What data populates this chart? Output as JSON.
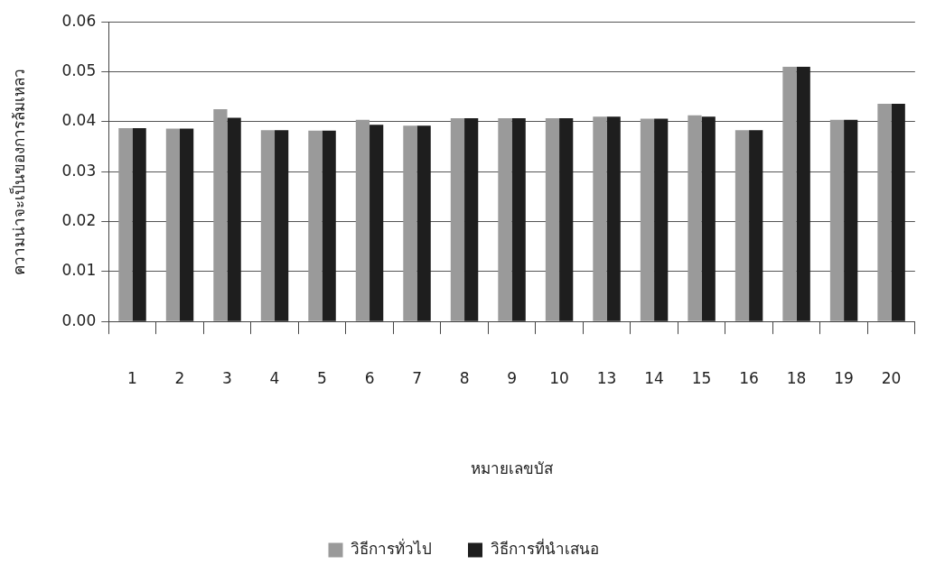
{
  "chart_data": {
    "type": "bar",
    "xlabel": "หมายเลขบัส",
    "ylabel": "ความน่าจะเป็นของการล้มเหลว",
    "categories": [
      "1",
      "2",
      "3",
      "4",
      "5",
      "6",
      "7",
      "8",
      "9",
      "10",
      "13",
      "14",
      "15",
      "16",
      "18",
      "19",
      "20"
    ],
    "series": [
      {
        "name": "วิธีการทั่วไป",
        "color": "#9a9a9a",
        "values": [
          0.0387,
          0.0386,
          0.0425,
          0.0383,
          0.0382,
          0.0404,
          0.0392,
          0.0407,
          0.0407,
          0.0407,
          0.041,
          0.0406,
          0.0413,
          0.0383,
          0.051,
          0.0404,
          0.0436
        ]
      },
      {
        "name": "วิธีการที่นำเสนอ",
        "color": "#1e1e1e",
        "values": [
          0.0387,
          0.0386,
          0.0408,
          0.0383,
          0.0382,
          0.0394,
          0.0392,
          0.0407,
          0.0407,
          0.0407,
          0.041,
          0.0406,
          0.041,
          0.0383,
          0.051,
          0.0404,
          0.0436
        ]
      }
    ],
    "ylim": [
      0,
      0.06
    ],
    "yticks": [
      {
        "value": 0,
        "label": "0.00"
      },
      {
        "value": 0.01,
        "label": "0.01"
      },
      {
        "value": 0.02,
        "label": "0.02"
      },
      {
        "value": 0.03,
        "label": "0.03"
      },
      {
        "value": 0.04,
        "label": "0.04"
      },
      {
        "value": 0.05,
        "label": "0.05"
      },
      {
        "value": 0.06,
        "label": "0.06"
      }
    ],
    "grid": "y",
    "legend": "bottom"
  }
}
